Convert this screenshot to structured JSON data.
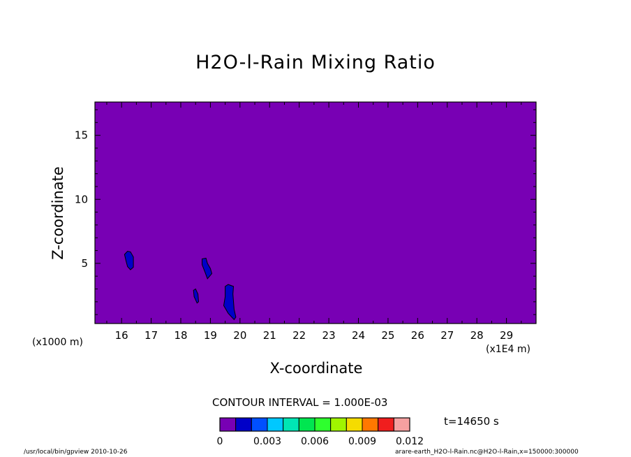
{
  "chart_data": {
    "type": "heatmap",
    "title": "H2O-l-Rain Mixing Ratio",
    "xlabel": "X-coordinate",
    "ylabel": "Z-coordinate",
    "x_multiplier": "(x1E4 m)",
    "y_multiplier": "(x1000 m)",
    "xlim": [
      15.1,
      30.0
    ],
    "ylim": [
      0.3,
      17.6
    ],
    "x_ticks": [
      16,
      17,
      18,
      19,
      20,
      21,
      22,
      23,
      24,
      25,
      26,
      27,
      28,
      29
    ],
    "y_ticks": [
      5,
      10,
      15
    ],
    "background_level": "0 – 0.001",
    "cells": [
      {
        "level": "0.001 – 0.002",
        "outline": [
          [
            16.1,
            5.7
          ],
          [
            16.2,
            5.95
          ],
          [
            16.3,
            5.9
          ],
          [
            16.4,
            5.5
          ],
          [
            16.4,
            4.7
          ],
          [
            16.3,
            4.5
          ],
          [
            16.2,
            4.75
          ],
          [
            16.15,
            5.2
          ]
        ]
      },
      {
        "level": "0.001 – 0.002",
        "outline": [
          [
            18.72,
            5.35
          ],
          [
            18.85,
            5.4
          ],
          [
            18.9,
            5.0
          ],
          [
            19.0,
            4.6
          ],
          [
            19.05,
            4.2
          ],
          [
            18.9,
            3.8
          ],
          [
            18.82,
            4.3
          ],
          [
            18.72,
            4.9
          ]
        ]
      },
      {
        "level": "0.001 – 0.002",
        "outline": [
          [
            18.43,
            2.9
          ],
          [
            18.5,
            3.0
          ],
          [
            18.58,
            2.6
          ],
          [
            18.6,
            2.0
          ],
          [
            18.55,
            1.9
          ],
          [
            18.45,
            2.4
          ]
        ]
      },
      {
        "level": "0.001 – 0.002",
        "outline": [
          [
            19.5,
            3.2
          ],
          [
            19.6,
            3.35
          ],
          [
            19.78,
            3.2
          ],
          [
            19.76,
            2.6
          ],
          [
            19.8,
            1.4
          ],
          [
            19.86,
            0.8
          ],
          [
            19.8,
            0.6
          ],
          [
            19.6,
            1.1
          ],
          [
            19.45,
            1.7
          ],
          [
            19.5,
            2.4
          ]
        ]
      }
    ],
    "colorbar": {
      "levels": [
        0,
        0.001,
        0.002,
        0.003,
        0.004,
        0.005,
        0.006,
        0.007,
        0.008,
        0.009,
        0.01,
        0.011,
        0.012
      ],
      "colors": [
        "#7800b4",
        "#0000c8",
        "#0050ff",
        "#00c8ff",
        "#00e6b4",
        "#00e650",
        "#2eff2e",
        "#a0f500",
        "#f5dc00",
        "#ff7800",
        "#f01e1e",
        "#f5a0a0"
      ],
      "tick_labels": [
        "0",
        "0.003",
        "0.006",
        "0.009",
        "0.012"
      ],
      "tick_levels": [
        0,
        0.003,
        0.006,
        0.009,
        0.012
      ]
    },
    "contour_interval": "CONTOUR INTERVAL = 1.000E-03",
    "time": "t=14650 s"
  },
  "footer": {
    "left": "/usr/local/bin/gpview  2010-10-26",
    "right": "arare-earth_H2O-l-Rain.nc@H2O-l-Rain,x=150000:300000"
  }
}
